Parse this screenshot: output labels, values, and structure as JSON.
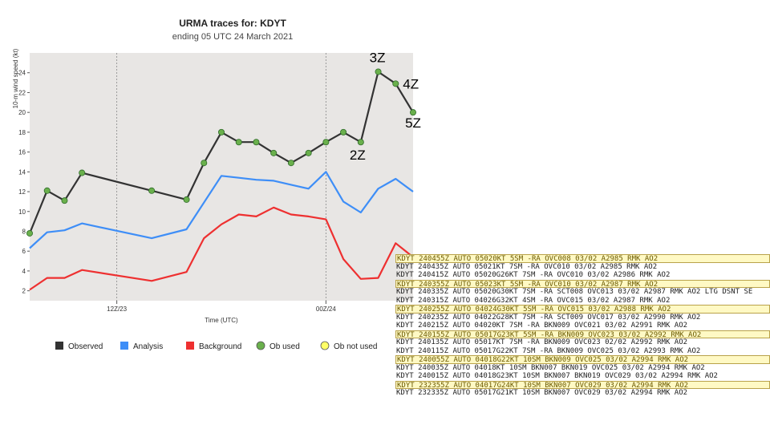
{
  "chart_data": {
    "type": "line",
    "title": "URMA traces for: KDYT",
    "subtitle": "ending 05 UTC 24 March 2021",
    "xlabel": "Time (UTC)",
    "ylabel": "10-m wind speed (kt)",
    "ylim": [
      1,
      26
    ],
    "xlim": [
      0,
      22
    ],
    "yticks": [
      2,
      4,
      6,
      8,
      10,
      12,
      14,
      16,
      18,
      20,
      22,
      24
    ],
    "xticks": [
      {
        "x": 5,
        "label": "12Z/23"
      },
      {
        "x": 17,
        "label": "00Z/24"
      }
    ],
    "grid": false,
    "background": "#e8e6e4",
    "series": [
      {
        "name": "Observed",
        "color": "#333333",
        "x": [
          0,
          1,
          2,
          3,
          7,
          9,
          10,
          11,
          12,
          13,
          14,
          15,
          16,
          17,
          18,
          19,
          20,
          21,
          22
        ],
        "values": [
          7.8,
          12.1,
          11.1,
          13.9,
          12.1,
          11.2,
          14.9,
          18.0,
          17.0,
          17.0,
          15.9,
          14.9,
          15.9,
          17.0,
          18.0,
          17.0,
          24.1,
          22.9,
          20.0
        ],
        "markers": true,
        "marker_color": "#6ab04c"
      },
      {
        "name": "Analysis",
        "color": "#3e8ef7",
        "x": [
          0,
          1,
          2,
          3,
          7,
          9,
          11,
          12,
          13,
          14,
          15,
          16,
          17,
          18,
          19,
          20,
          21,
          22
        ],
        "values": [
          6.3,
          7.9,
          8.1,
          8.8,
          7.3,
          8.2,
          13.6,
          13.4,
          13.2,
          13.1,
          12.7,
          12.3,
          14.0,
          11.0,
          9.9,
          12.3,
          13.3,
          12.0
        ]
      },
      {
        "name": "Background",
        "color": "#ee3030",
        "x": [
          0,
          1,
          2,
          3,
          7,
          9,
          10,
          11,
          12,
          13,
          14,
          15,
          16,
          17,
          18,
          19,
          20,
          21,
          22
        ],
        "values": [
          2.1,
          3.3,
          3.3,
          4.1,
          3.0,
          3.9,
          7.3,
          8.7,
          9.7,
          9.5,
          10.4,
          9.7,
          9.5,
          9.2,
          5.2,
          3.2,
          3.3,
          6.8,
          5.4
        ]
      }
    ],
    "point_labels": [
      {
        "x": 19,
        "text": "2Z"
      },
      {
        "x": 20,
        "text": "3Z"
      },
      {
        "x": 21,
        "text": "4Z"
      },
      {
        "x": 22,
        "text": "5Z"
      }
    ],
    "legend": {
      "placement": "bottom",
      "items": [
        {
          "label": "Observed",
          "symbol": "square",
          "color": "#333333"
        },
        {
          "label": "Analysis",
          "symbol": "square",
          "color": "#3e8ef7"
        },
        {
          "label": "Background",
          "symbol": "square",
          "color": "#ee3030"
        },
        {
          "label": "Ob used",
          "symbol": "circle",
          "color": "#6ab04c"
        },
        {
          "label": "Ob not used",
          "symbol": "circle",
          "color": "#ffff66"
        }
      ]
    }
  },
  "metar_reports": [
    {
      "text": "KDYT 240455Z AUTO 05020KT 5SM -RA OVC008 03/02 A2985 RMK AO2",
      "highlighted": true
    },
    {
      "text": "KDYT 240435Z AUTO 05021KT 7SM -RA OVC010 03/02 A2985 RMK AO2",
      "highlighted": false
    },
    {
      "text": "KDYT 240415Z AUTO 05020G26KT 7SM -RA OVC010 03/02 A2986 RMK AO2",
      "highlighted": false
    },
    {
      "text": "KDYT 240355Z AUTO 05023KT 5SM -RA OVC010 03/02 A2987 RMK AO2",
      "highlighted": true
    },
    {
      "text": "KDYT 240335Z AUTO 05020G30KT 7SM -RA SCT008 OVC013 03/02 A2987 RMK AO2 LTG DSNT SE",
      "highlighted": false
    },
    {
      "text": "KDYT 240315Z AUTO 04026G32KT 4SM -RA OVC015 03/02 A2987 RMK AO2",
      "highlighted": false
    },
    {
      "text": "KDYT 240255Z AUTO 04024G30KT 5SM -RA OVC015 03/02 A2988 RMK AO2",
      "highlighted": true
    },
    {
      "text": "KDYT 240235Z AUTO 04022G28KT 7SM -RA SCT009 OVC017 03/02 A2990 RMK AO2",
      "highlighted": false
    },
    {
      "text": "KDYT 240215Z AUTO 04020KT 7SM -RA BKN009 OVC021 03/02 A2991 RMK AO2",
      "highlighted": false
    },
    {
      "text": "KDYT 240155Z AUTO 05017G23KT 5SM -RA BKN009 OVC023 03/02 A2992 RMK AO2",
      "highlighted": true
    },
    {
      "text": "KDYT 240135Z AUTO 05017KT 7SM -RA BKN009 OVC023 02/02 A2992 RMK AO2",
      "highlighted": false
    },
    {
      "text": "KDYT 240115Z AUTO 05017G22KT 7SM -RA BKN009 OVC025 03/02 A2993 RMK AO2",
      "highlighted": false
    },
    {
      "text": "KDYT 240055Z AUTO 04018G22KT 10SM BKN009 OVC025 03/02 A2994 RMK AO2",
      "highlighted": true
    },
    {
      "text": "KDYT 240035Z AUTO 04018KT 10SM BKN007 BKN019 OVC025 03/02 A2994 RMK AO2",
      "highlighted": false
    },
    {
      "text": "KDYT 240015Z AUTO 04018G23KT 10SM BKN007 BKN019 OVC029 03/02 A2994 RMK AO2",
      "highlighted": false
    },
    {
      "text": "KDYT 232355Z AUTO 04017G24KT 10SM BKN007 OVC029 03/02 A2994 RMK AO2",
      "highlighted": true
    },
    {
      "text": "KDYT 232335Z AUTO 05017G21KT 10SM BKN007 OVC029 03/02 A2994 RMK AO2",
      "highlighted": false
    }
  ]
}
